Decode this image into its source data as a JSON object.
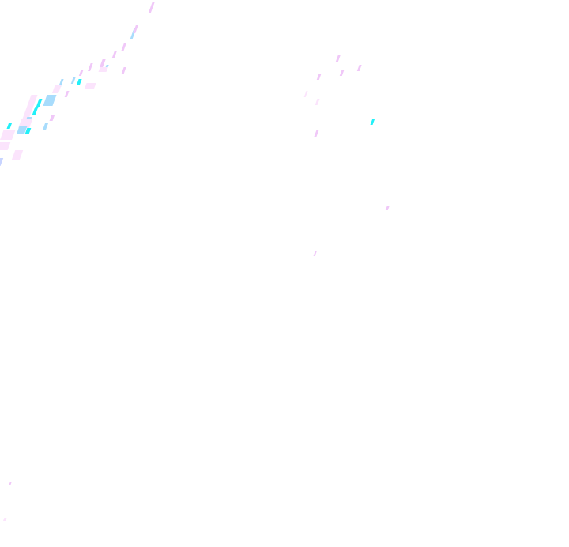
{
  "map": {
    "layer": "precipitation-overlay",
    "colors": {
      "background": "#ffffff",
      "light": "#fbe4fc",
      "medium": "#f0c8f8",
      "blue": "#a8dcfc",
      "bright": "#22f0f8",
      "violet": "#c8d4ff"
    }
  }
}
